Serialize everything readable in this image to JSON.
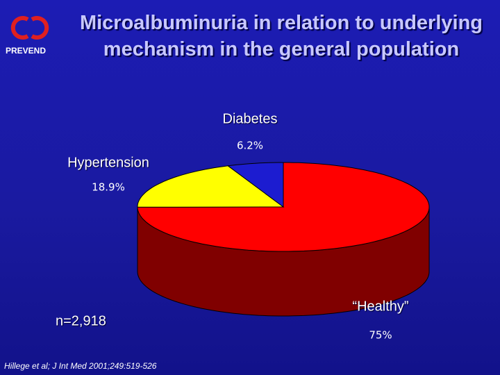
{
  "logo": "PREVEND",
  "chart_data": {
    "type": "pie",
    "title": "Microalbuminuria in relation to underlying mechanism in the general population",
    "categories": [
      "“Healthy”",
      "Hypertension",
      "Diabetes"
    ],
    "values": [
      75,
      18.9,
      6.2
    ],
    "value_labels": [
      "75%",
      "18.9%",
      "6.2%"
    ],
    "colors": [
      "#ff0000",
      "#ffff00",
      "#1c1cd0"
    ],
    "side_colors": [
      "#800000",
      "#909000",
      "#0c0c70"
    ],
    "annotations": [
      "n=2,918",
      "Hillege et al; J Int Med 2001;249:519-526"
    ]
  }
}
